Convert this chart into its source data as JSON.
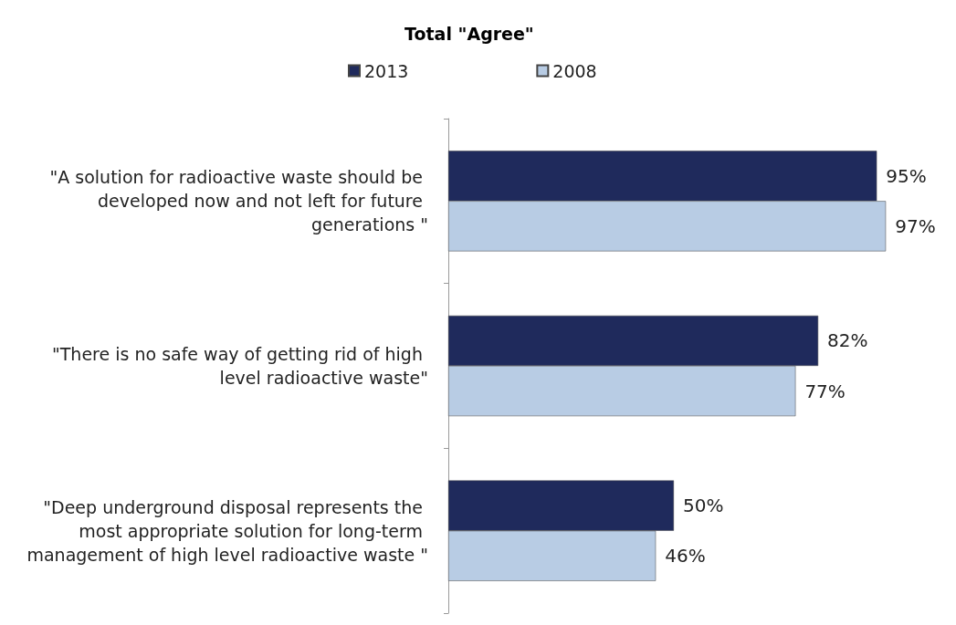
{
  "chart_data": {
    "type": "bar",
    "orientation": "horizontal",
    "title": "Total \"Agree\"",
    "categories": [
      "\"A solution for radioactive waste should be developed now and not left for future generations \"",
      "\"There is no safe way of getting rid of high level radioactive waste\"",
      "\"Deep underground disposal represents the most appropriate solution for long-term management of high level radioactive waste \""
    ],
    "series": [
      {
        "name": "2013",
        "color": "#1f2a5c",
        "values": [
          95,
          82,
          50
        ],
        "value_labels": [
          "95%",
          "82%",
          "50%"
        ]
      },
      {
        "name": "2008",
        "color": "#b8cce4",
        "values": [
          97,
          77,
          46
        ],
        "value_labels": [
          "97%",
          "77%",
          "46%"
        ]
      }
    ],
    "grid": false,
    "legend": "top"
  }
}
